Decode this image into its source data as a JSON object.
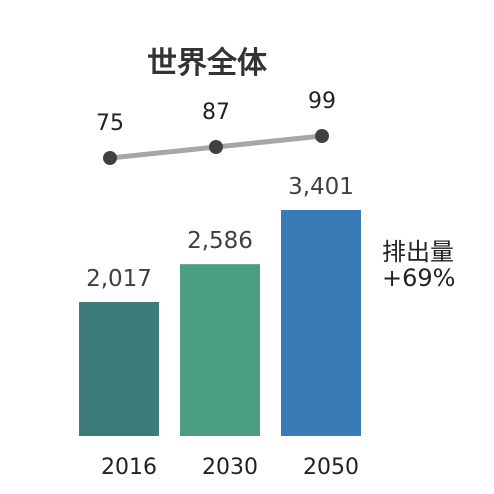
{
  "chart_data": {
    "type": "bar",
    "title": "世界全体",
    "categories": [
      "2016",
      "2030",
      "2050"
    ],
    "values": [
      2017,
      2586,
      3401
    ],
    "value_labels": [
      "2,017",
      "2,586",
      "3,401"
    ],
    "bar_colors": [
      "#3c7d7a",
      "#4a9e82",
      "#3a7bb7"
    ],
    "line_series": {
      "values": [
        75,
        87,
        99
      ],
      "value_labels": [
        "75",
        "87",
        "99"
      ],
      "line_color": "#a6a6a6",
      "marker_color": "#404040"
    },
    "annotation": {
      "line1": "排出量",
      "line2": "+69%"
    }
  }
}
